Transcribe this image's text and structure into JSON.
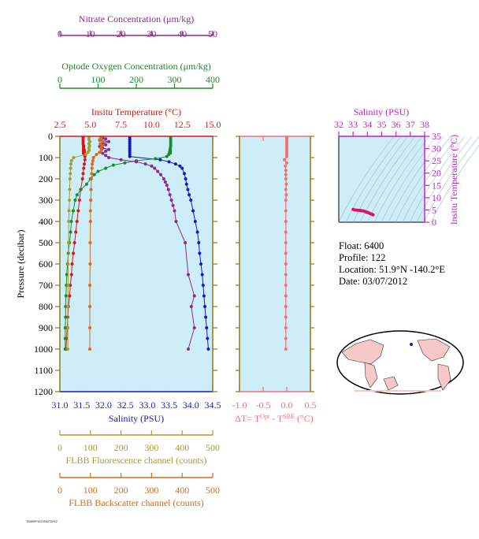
{
  "info": {
    "float_label": "Float:  6400",
    "profile_label": "Profile:  122",
    "location_label": "Location:  51.9°N  -140.2°E",
    "date_label": "Date:  03/07/2012"
  },
  "footer_code": "T6400P122-03072012",
  "chart_data": [
    {
      "type": "line",
      "name": "main-profile",
      "ylabel": "Pressure (decibar)",
      "ylim": [
        1200,
        0
      ],
      "yticks": [
        0,
        100,
        200,
        300,
        400,
        500,
        600,
        700,
        800,
        900,
        1000,
        1100,
        1200
      ],
      "grid": false,
      "axes": {
        "temperature": {
          "label": "Insitu Temperature (°C)",
          "ticks": [
            "2.5",
            "5.0",
            "7.5",
            "10.0",
            "12.5",
            "15.0"
          ],
          "range": [
            2.5,
            15.0
          ],
          "color": "#d81818"
        },
        "salinity": {
          "label": "Salinity (PSU)",
          "ticks": [
            "31.0",
            "31.5",
            "32.0",
            "32.5",
            "33.0",
            "33.5",
            "34.0",
            "34.5"
          ],
          "range": [
            31.0,
            34.5
          ],
          "color": "#1818c8"
        },
        "nitrate": {
          "label": "Nitrate Concentration (μm/kg)",
          "ticks": [
            "0",
            "10",
            "20",
            "30",
            "40",
            "50"
          ],
          "range": [
            0,
            50
          ],
          "color": "#8a2a8a"
        },
        "oxygen": {
          "label": "Optode Oxygen Concentration (μm/kg)",
          "ticks": [
            "0",
            "100",
            "200",
            "300",
            "400"
          ],
          "range": [
            0,
            400
          ],
          "color": "#1a8a2a"
        },
        "fluorescence": {
          "label": "FLBB Fluorescence channel (counts)",
          "ticks": [
            "0",
            "100",
            "200",
            "300",
            "400",
            "500"
          ],
          "range": [
            0,
            500
          ],
          "color": "#a0a030"
        },
        "backscatter": {
          "label": "FLBB Backscatter channel (counts)",
          "ticks": [
            "0",
            "100",
            "200",
            "300",
            "400",
            "500"
          ],
          "range": [
            0,
            500
          ],
          "color": "#d86a1a"
        }
      },
      "series": [
        {
          "name": "Insitu Temperature",
          "color": "#d81818",
          "p": [
            5,
            15,
            25,
            35,
            45,
            55,
            65,
            75,
            85,
            95,
            110,
            130,
            150,
            175,
            200,
            250,
            300,
            350,
            400,
            450,
            500,
            550,
            600,
            650,
            700,
            750,
            800,
            850,
            900,
            950,
            1000
          ],
          "v": [
            4.4,
            4.4,
            4.4,
            4.4,
            4.45,
            4.45,
            4.5,
            4.5,
            4.5,
            4.55,
            4.55,
            4.5,
            4.45,
            4.4,
            4.35,
            4.2,
            4.1,
            4.0,
            3.9,
            3.8,
            3.7,
            3.6,
            3.5,
            3.45,
            3.35,
            3.3,
            3.2,
            3.15,
            3.1,
            3.05,
            3.0
          ]
        },
        {
          "name": "Salinity",
          "color": "#1818c8",
          "p": [
            5,
            15,
            25,
            35,
            45,
            55,
            65,
            75,
            85,
            95,
            110,
            120,
            130,
            140,
            150,
            175,
            200,
            225,
            250,
            275,
            300,
            350,
            400,
            450,
            500,
            550,
            600,
            650,
            700,
            750,
            800,
            850,
            900,
            950,
            1000
          ],
          "v": [
            32.6,
            32.6,
            32.6,
            32.6,
            32.6,
            32.6,
            32.6,
            32.6,
            32.6,
            32.6,
            33.3,
            33.5,
            33.65,
            33.75,
            33.8,
            33.85,
            33.88,
            33.9,
            33.93,
            33.96,
            34.0,
            34.05,
            34.1,
            34.15,
            34.18,
            34.2,
            34.23,
            34.26,
            34.28,
            34.3,
            34.32,
            34.34,
            34.36,
            34.38,
            34.4
          ]
        },
        {
          "name": "Optode Oxygen",
          "color": "#1a8a2a",
          "p": [
            5,
            15,
            25,
            35,
            45,
            55,
            65,
            75,
            85,
            95,
            105,
            115,
            125,
            135,
            150,
            165,
            180,
            200,
            225,
            250,
            275,
            300,
            350,
            400,
            450,
            500,
            550,
            600,
            650,
            700,
            750,
            800,
            850,
            900,
            950,
            1000
          ],
          "v": [
            290,
            290,
            290,
            290,
            290,
            289,
            288,
            287,
            285,
            280,
            250,
            200,
            170,
            140,
            120,
            100,
            90,
            80,
            70,
            55,
            45,
            40,
            35,
            30,
            28,
            25,
            22,
            20,
            18,
            17,
            16,
            15,
            15,
            14,
            14,
            14
          ]
        },
        {
          "name": "Nitrate",
          "color": "#8a2a8a",
          "p": [
            5,
            12,
            18,
            25,
            32,
            40,
            48,
            55,
            62,
            70,
            80,
            90,
            100,
            110,
            120,
            130,
            140,
            150,
            165,
            180,
            200,
            215,
            230,
            250,
            275,
            300,
            325,
            350,
            400,
            500,
            650,
            750,
            800,
            900,
            1000
          ],
          "v": [
            14,
            15,
            13,
            16,
            14,
            15,
            13,
            14,
            16,
            15,
            14,
            15,
            16,
            20,
            25,
            28,
            30,
            31,
            32,
            33,
            34,
            34.5,
            35,
            35.5,
            36,
            36.5,
            37,
            37.5,
            38,
            41,
            42,
            44,
            43,
            44,
            42
          ]
        },
        {
          "name": "FLBB Fluorescence",
          "color": "#a0a030",
          "p": [
            5,
            15,
            25,
            35,
            45,
            55,
            65,
            75,
            85,
            100,
            115,
            130,
            150,
            175,
            200,
            250,
            300,
            350,
            400,
            500,
            600,
            700,
            800,
            900,
            1000
          ],
          "v": [
            95,
            95,
            98,
            95,
            97,
            95,
            96,
            92,
            85,
            45,
            38,
            36,
            35,
            34,
            33,
            32,
            31,
            30,
            29,
            28,
            27,
            27,
            26,
            26,
            26
          ]
        },
        {
          "name": "FLBB Backscatter",
          "color": "#d86a1a",
          "p": [
            5,
            15,
            25,
            35,
            45,
            55,
            65,
            75,
            85,
            100,
            115,
            130,
            150,
            175,
            200,
            250,
            300,
            350,
            400,
            500,
            600,
            700,
            800,
            900,
            1000
          ],
          "v": [
            135,
            130,
            140,
            132,
            138,
            134,
            136,
            130,
            120,
            110,
            108,
            106,
            105,
            104,
            103,
            102,
            101,
            100,
            100,
            99,
            99,
            98,
            98,
            98,
            98
          ]
        }
      ]
    },
    {
      "type": "line",
      "name": "temperature-difference",
      "xlabel": "ΔT= T^Opt - T^SBE (°C)",
      "xticks": [
        "-1.0",
        "-0.5",
        "0.0",
        "0.5"
      ],
      "xlim": [
        -1.0,
        0.5
      ],
      "ylim": [
        1200,
        0
      ],
      "color": "#f07070",
      "series": [
        {
          "name": "ΔT",
          "p": [
            5,
            15,
            25,
            35,
            45,
            55,
            65,
            75,
            85,
            95,
            110,
            125,
            140,
            160,
            180,
            200,
            225,
            250,
            275,
            300,
            350,
            400,
            450,
            500,
            550,
            600,
            650,
            700,
            750,
            800,
            850,
            900,
            950,
            1000
          ],
          "v": [
            0.0,
            0.0,
            0.0,
            0.0,
            0.0,
            0.0,
            0.0,
            0.0,
            0.0,
            0.0,
            -0.05,
            0.0,
            -0.03,
            -0.02,
            -0.02,
            -0.02,
            -0.01,
            -0.02,
            -0.01,
            -0.02,
            -0.02,
            -0.02,
            -0.02,
            -0.02,
            -0.02,
            -0.02,
            -0.02,
            -0.02,
            -0.02,
            -0.02,
            -0.02,
            -0.02,
            -0.02,
            -0.02
          ]
        }
      ]
    },
    {
      "type": "scatter",
      "name": "ts-diagram",
      "title": "Salinity (PSU)",
      "ylabel": "Insitu Temperature (°C)",
      "xticks": [
        "32",
        "33",
        "34",
        "35",
        "36",
        "37",
        "38"
      ],
      "xlim": [
        32,
        38
      ],
      "yticks": [
        "0",
        "5",
        "10",
        "15",
        "20",
        "25",
        "30",
        "35"
      ],
      "ylim": [
        0,
        35
      ],
      "color": "#e0106a",
      "points": [
        [
          33.0,
          5.2
        ],
        [
          33.1,
          5.0
        ],
        [
          33.3,
          4.9
        ],
        [
          33.5,
          4.8
        ],
        [
          33.7,
          4.6
        ],
        [
          33.8,
          4.4
        ],
        [
          33.9,
          4.2
        ],
        [
          34.0,
          4.0
        ],
        [
          34.1,
          3.8
        ],
        [
          34.2,
          3.5
        ],
        [
          34.3,
          3.3
        ],
        [
          34.4,
          3.0
        ],
        [
          33.6,
          4.7
        ],
        [
          33.4,
          4.85
        ],
        [
          33.2,
          4.95
        ]
      ]
    }
  ]
}
